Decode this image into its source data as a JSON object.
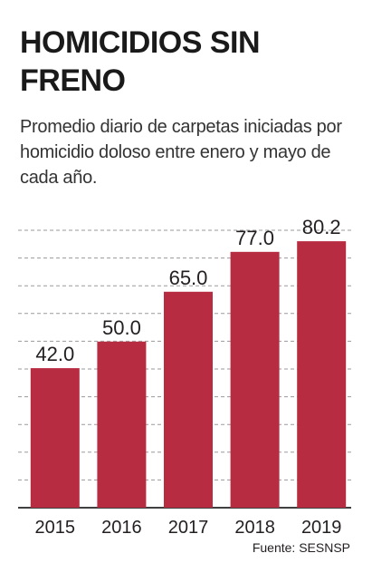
{
  "title": "HOMICIDIOS SIN FRENO",
  "subtitle": "Promedio diario de carpetas iniciadas por homicidio doloso entre enero y mayo de cada año.",
  "source": "Fuente: SESNSP",
  "colors": {
    "bar": "#b82c42",
    "grid": "#9a9a9a",
    "text": "#231f20",
    "axis": "#000000"
  },
  "chart_data": {
    "type": "bar",
    "categories": [
      "2015",
      "2016",
      "2017",
      "2018",
      "2019"
    ],
    "values": [
      42.0,
      50.0,
      65.0,
      77.0,
      80.2
    ],
    "value_labels": [
      "42.0",
      "50.0",
      "65.0",
      "77.0",
      "80.2"
    ],
    "ylim": [
      0,
      90
    ],
    "grid": true,
    "xlabel": "",
    "ylabel": ""
  }
}
